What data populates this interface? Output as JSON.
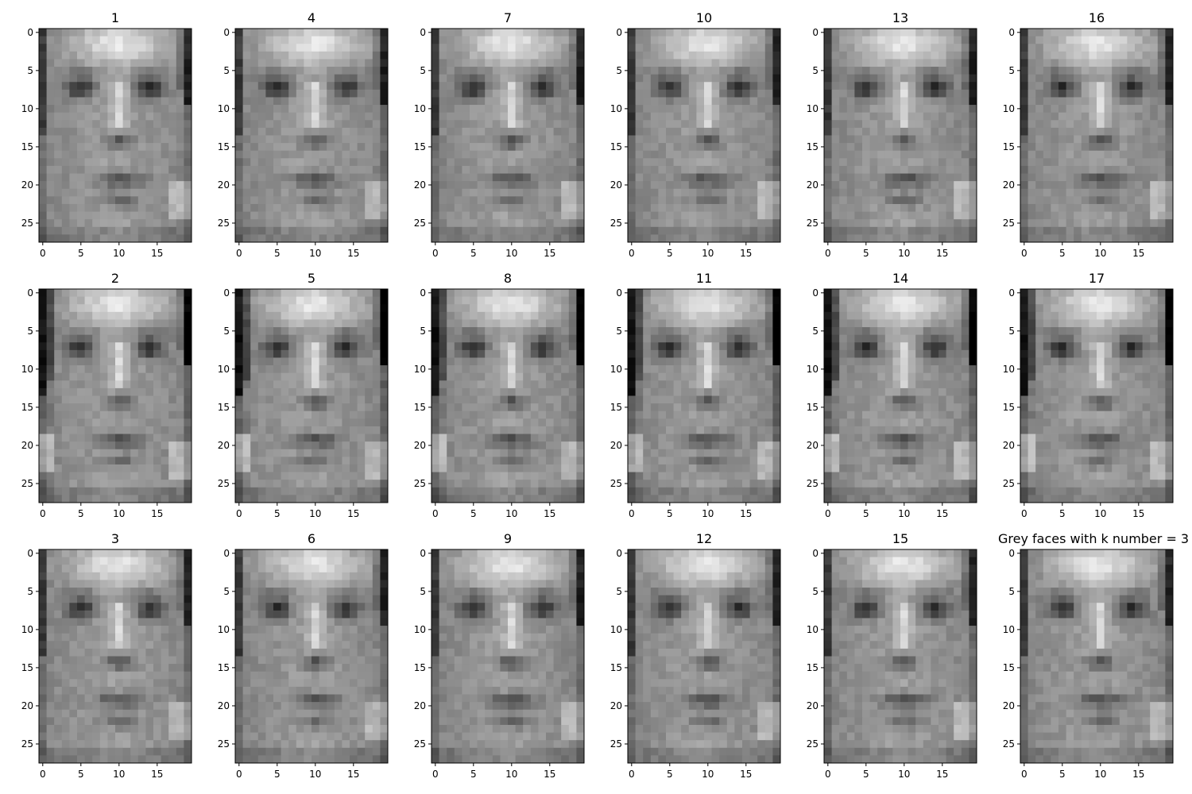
{
  "chart_data": {
    "type": "heatmap",
    "colormap": "gray",
    "image_shape": [
      28,
      20
    ],
    "xticks": [
      0,
      5,
      10,
      15
    ],
    "yticks": [
      0,
      5,
      10,
      15,
      20,
      25
    ],
    "grid": false,
    "grid_rows": 3,
    "grid_cols": 6,
    "panels": [
      {
        "title": "1"
      },
      {
        "title": "4"
      },
      {
        "title": "7"
      },
      {
        "title": "10"
      },
      {
        "title": "13"
      },
      {
        "title": "16"
      },
      {
        "title": "2"
      },
      {
        "title": "5"
      },
      {
        "title": "8"
      },
      {
        "title": "11"
      },
      {
        "title": "14"
      },
      {
        "title": "17"
      },
      {
        "title": "3"
      },
      {
        "title": "6"
      },
      {
        "title": "9"
      },
      {
        "title": "12"
      },
      {
        "title": "15"
      },
      {
        "title": "Grey faces with k number = 3"
      }
    ]
  }
}
